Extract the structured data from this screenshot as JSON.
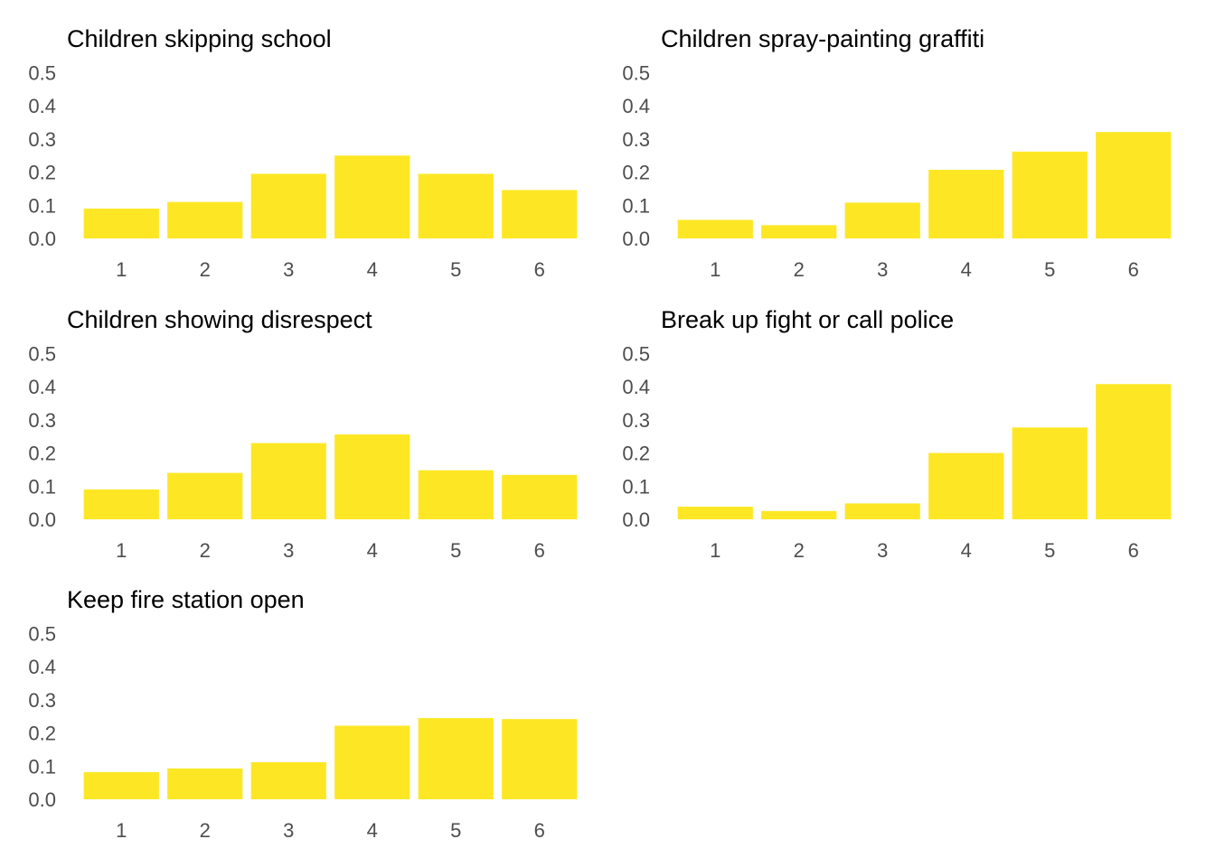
{
  "chart_data": [
    {
      "type": "bar",
      "title": "Children skipping school",
      "categories": [
        "1",
        "2",
        "3",
        "4",
        "5",
        "6"
      ],
      "values": [
        0.09,
        0.11,
        0.195,
        0.25,
        0.195,
        0.146
      ],
      "ylim": [
        0,
        0.5
      ],
      "yticks": [
        "0.0",
        "0.1",
        "0.2",
        "0.3",
        "0.4",
        "0.5"
      ],
      "color": "#FDE725",
      "grid": false
    },
    {
      "type": "bar",
      "title": "Children spray-painting graffiti",
      "categories": [
        "1",
        "2",
        "3",
        "4",
        "5",
        "6"
      ],
      "values": [
        0.056,
        0.04,
        0.108,
        0.207,
        0.262,
        0.321
      ],
      "ylim": [
        0,
        0.5
      ],
      "yticks": [
        "0.0",
        "0.1",
        "0.2",
        "0.3",
        "0.4",
        "0.5"
      ],
      "color": "#FDE725",
      "grid": false
    },
    {
      "type": "bar",
      "title": "Children showing disrespect",
      "categories": [
        "1",
        "2",
        "3",
        "4",
        "5",
        "6"
      ],
      "values": [
        0.09,
        0.14,
        0.23,
        0.256,
        0.148,
        0.134
      ],
      "ylim": [
        0,
        0.5
      ],
      "yticks": [
        "0.0",
        "0.1",
        "0.2",
        "0.3",
        "0.4",
        "0.5"
      ],
      "color": "#FDE725",
      "grid": false
    },
    {
      "type": "bar",
      "title": "Break up fight or call police",
      "categories": [
        "1",
        "2",
        "3",
        "4",
        "5",
        "6"
      ],
      "values": [
        0.038,
        0.025,
        0.048,
        0.2,
        0.277,
        0.408
      ],
      "ylim": [
        0,
        0.5
      ],
      "yticks": [
        "0.0",
        "0.1",
        "0.2",
        "0.3",
        "0.4",
        "0.5"
      ],
      "color": "#FDE725",
      "grid": false
    },
    {
      "type": "bar",
      "title": "Keep fire station open",
      "categories": [
        "1",
        "2",
        "3",
        "4",
        "5",
        "6"
      ],
      "values": [
        0.082,
        0.093,
        0.112,
        0.222,
        0.245,
        0.242
      ],
      "ylim": [
        0,
        0.5
      ],
      "yticks": [
        "0.0",
        "0.1",
        "0.2",
        "0.3",
        "0.4",
        "0.5"
      ],
      "color": "#FDE725",
      "grid": false
    }
  ]
}
